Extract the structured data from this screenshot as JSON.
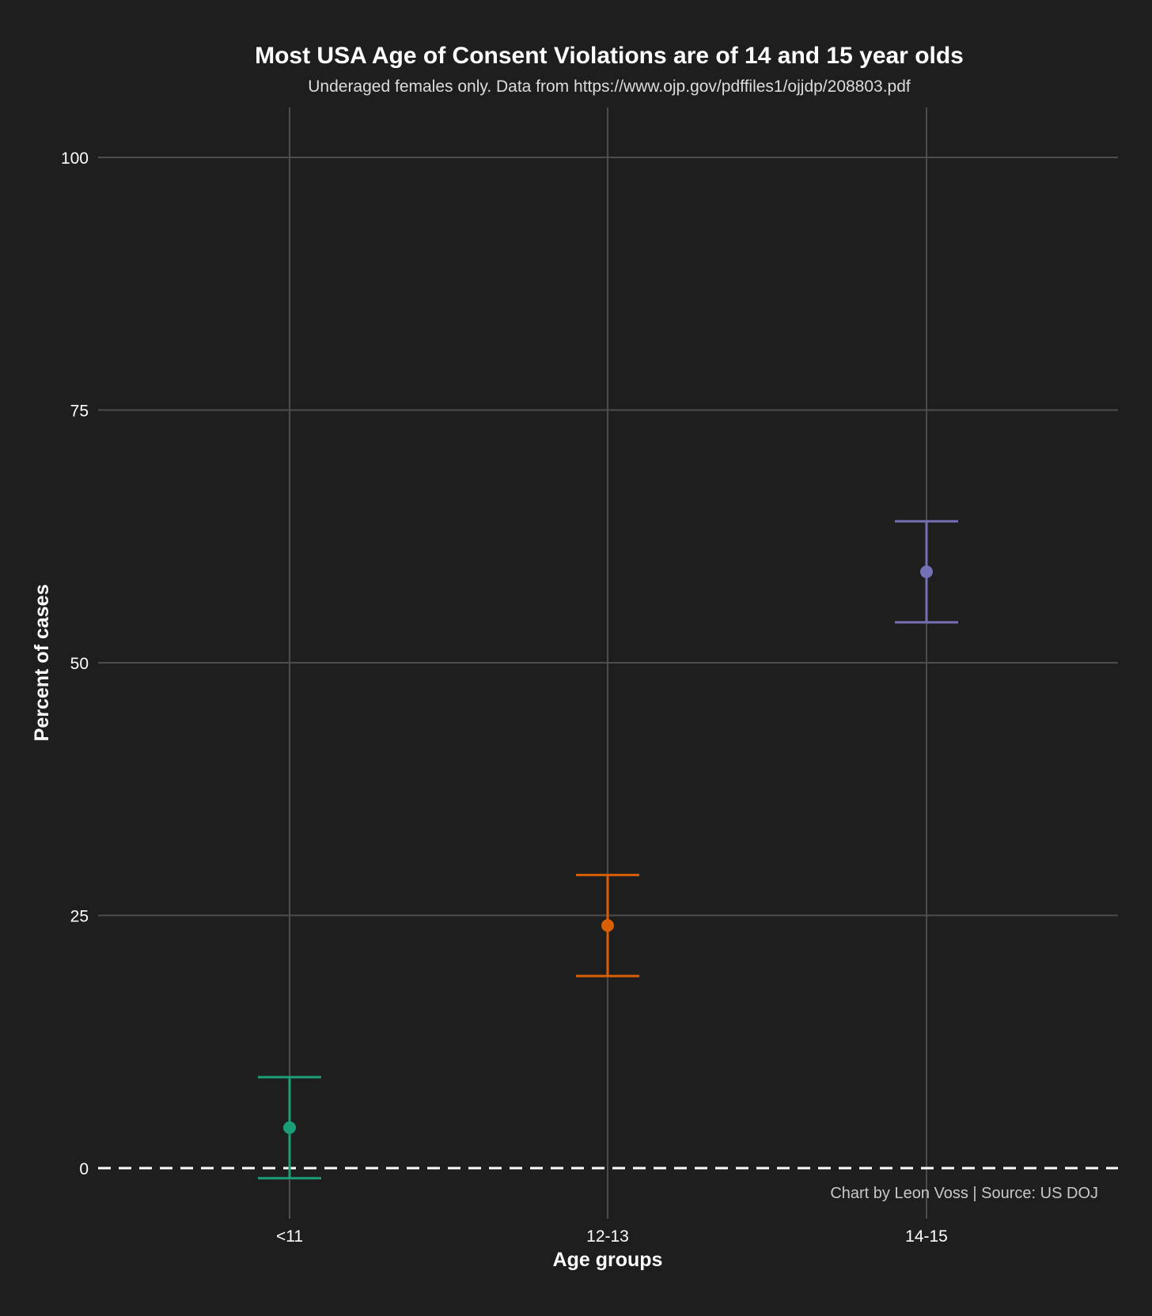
{
  "chart_data": {
    "type": "scatter",
    "title": "Most USA Age of Consent Violations are of 14 and 15 year olds",
    "subtitle": "Underaged females only. Data from https://www.ojp.gov/pdffiles1/ojjdp/208803.pdf",
    "caption": "Chart by Leon Voss | Source: US DOJ",
    "xlabel": "Age groups",
    "ylabel": "Percent of cases",
    "categories": [
      "<11",
      "12-13",
      "14-15"
    ],
    "y_ticks": [
      0,
      25,
      50,
      75,
      100
    ],
    "y_tick_labels": [
      "0",
      "25",
      "50",
      "75",
      "100"
    ],
    "ylim": [
      -5,
      105
    ],
    "grid": true,
    "reference_line": {
      "y": 0,
      "style": "dashed",
      "color": "#ffffff"
    },
    "points": [
      {
        "category": "<11",
        "value": 4,
        "lower": -1,
        "upper": 9,
        "color": "#1b9e77"
      },
      {
        "category": "12-13",
        "value": 24,
        "lower": 19,
        "upper": 29,
        "color": "#d95f02"
      },
      {
        "category": "14-15",
        "value": 59,
        "lower": 54,
        "upper": 64,
        "color": "#7570b3"
      }
    ]
  }
}
